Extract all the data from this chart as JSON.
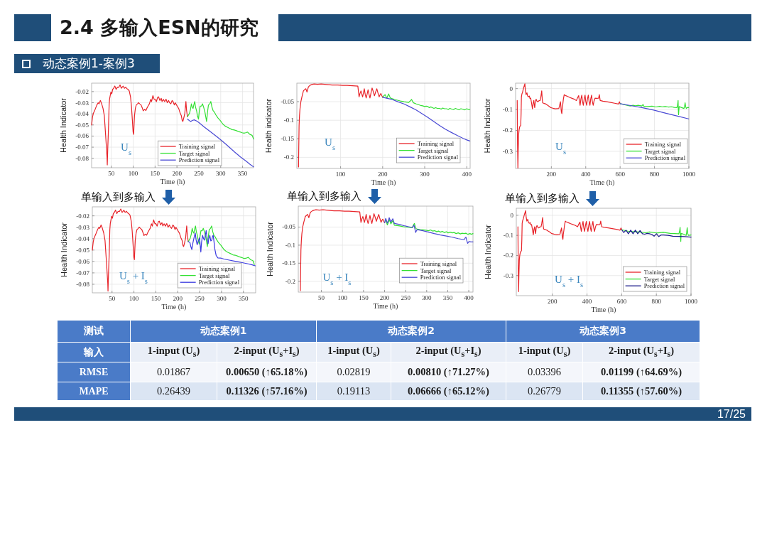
{
  "chart_data": [
    {
      "type": "other",
      "title": "2.4 多输入ESN的研究",
      "subtitle": "动态案例1-案例3"
    },
    {
      "type": "line",
      "xlabel": "Time (h)",
      "ylabel": "Health Indicator",
      "xlim": [
        5,
        375
      ],
      "ylim": [
        -0.0885,
        -0.0124
      ],
      "xticks": [
        50,
        100,
        150,
        200,
        250,
        300,
        350
      ],
      "yticks": [
        -0.08,
        -0.07,
        -0.06,
        -0.05,
        -0.04,
        -0.03,
        -0.02
      ],
      "grid": true,
      "legend": "bottom right",
      "annotations": [
        "U$_{s}$"
      ],
      "series": [
        {
          "name": "Training signal",
          "color": "#e8242a",
          "x": [
            5,
            7,
            9,
            13,
            17,
            20,
            22,
            25,
            28,
            31,
            34,
            36.5,
            38.5,
            40.3,
            40.8,
            42,
            43.5,
            45,
            46,
            49,
            51,
            53,
            55,
            58,
            61,
            64,
            67,
            70,
            73,
            77,
            80,
            83,
            85,
            88,
            91,
            94,
            96,
            98,
            99.8,
            101,
            103,
            105,
            107,
            110,
            112,
            115,
            118,
            121,
            123,
            126,
            129,
            131,
            134,
            137,
            140,
            142,
            145,
            148,
            150,
            153,
            156,
            158,
            161,
            164,
            166,
            169,
            172,
            175,
            178,
            181,
            183,
            186,
            189,
            191,
            194,
            196,
            199,
            202,
            204,
            207,
            210,
            212,
            213.5,
            216,
            218,
            220.5,
            222,
            224
          ],
          "values": [
            -0.05,
            -0.043,
            -0.0395,
            -0.036,
            -0.032,
            -0.03,
            -0.031,
            -0.028,
            -0.031,
            -0.035,
            -0.0416,
            -0.056,
            -0.068,
            -0.0796,
            -0.086,
            -0.07,
            -0.054,
            -0.032,
            -0.0268,
            -0.0204,
            -0.022,
            -0.018,
            -0.0172,
            -0.015,
            -0.018,
            -0.016,
            -0.0162,
            -0.014,
            -0.017,
            -0.0151,
            -0.017,
            -0.016,
            -0.0172,
            -0.018,
            -0.0194,
            -0.025,
            -0.0331,
            -0.045,
            -0.0564,
            -0.0585,
            -0.0416,
            -0.035,
            -0.032,
            -0.031,
            -0.0299,
            -0.031,
            -0.032,
            -0.035,
            -0.0373,
            -0.036,
            -0.037,
            -0.0352,
            -0.033,
            -0.031,
            -0.027,
            -0.029,
            -0.0236,
            -0.027,
            -0.0268,
            -0.029,
            -0.025,
            -0.0247,
            -0.028,
            -0.026,
            -0.0289,
            -0.027,
            -0.029,
            -0.0268,
            -0.03,
            -0.028,
            -0.0299,
            -0.031,
            -0.028,
            -0.0289,
            -0.032,
            -0.03,
            -0.032,
            -0.034,
            -0.0352,
            -0.039,
            -0.0416,
            -0.046,
            -0.0469,
            -0.043,
            -0.0395,
            -0.0289,
            -0.037,
            -0.0426
          ]
        },
        {
          "name": "Target signal",
          "color": "#33e033",
          "x": [
            224,
            228.7,
            231,
            233,
            235,
            236.8,
            238.5,
            240.6,
            242.5,
            244.9,
            247,
            249.2,
            251,
            253,
            256,
            258.4,
            261,
            263.9,
            266,
            267.7,
            270,
            272,
            275,
            277.4,
            280,
            282.8,
            285.5,
            289,
            293.6,
            299,
            304.5,
            310,
            315.3,
            320,
            326.1,
            331,
            337,
            341,
            345,
            349,
            353.2,
            357,
            361.3,
            364,
            366.7,
            370,
            372.1,
            375
          ],
          "values": [
            -0.0426,
            -0.0395,
            -0.036,
            -0.031,
            -0.034,
            -0.0352,
            -0.032,
            -0.0289,
            -0.034,
            -0.0373,
            -0.042,
            -0.0447,
            -0.038,
            -0.0331,
            -0.033,
            -0.031,
            -0.034,
            -0.0384,
            -0.043,
            -0.0469,
            -0.038,
            -0.032,
            -0.031,
            -0.0289,
            -0.034,
            -0.0373,
            -0.0384,
            -0.041,
            -0.0437,
            -0.046,
            -0.049,
            -0.051,
            -0.0521,
            -0.053,
            -0.0542,
            -0.0545,
            -0.0553,
            -0.056,
            -0.0564,
            -0.057,
            -0.0574,
            -0.057,
            -0.0564,
            -0.0575,
            -0.0585,
            -0.059,
            -0.0595,
            -0.0627
          ]
        },
        {
          "name": "Prediction signal",
          "color": "#4a4ad4",
          "x": [
            224,
            228,
            231.4,
            235,
            239.5,
            245,
            250.3,
            263,
            277.4,
            291,
            304.5,
            318,
            331.5,
            345,
            358.6,
            367,
            375
          ],
          "values": [
            -0.0447,
            -0.046,
            -0.0469,
            -0.046,
            -0.0454,
            -0.0465,
            -0.0479,
            -0.052,
            -0.0564,
            -0.0605,
            -0.0648,
            -0.0695,
            -0.0743,
            -0.0787,
            -0.0828,
            -0.0855,
            -0.0877
          ]
        }
      ]
    },
    {
      "type": "line",
      "xlabel": "Time (h)",
      "ylabel": "Health indicator",
      "xlim": [
        -4,
        408
      ],
      "ylim": [
        -0.23,
        0
      ],
      "xticks": [
        100,
        200,
        300,
        400
      ],
      "yticks": [
        -0.2,
        -0.15,
        -0.1,
        -0.05
      ],
      "grid": true,
      "legend": "bottom right",
      "annotations": [
        "U$_{s}$"
      ],
      "series": [
        {
          "name": "Training signal",
          "color": "#e8242a",
          "x": [
            0,
            0.6,
            1.3,
            2.3,
            3.5,
            5.5,
            8,
            10,
            11.6,
            14,
            17.3,
            20.1,
            22.9,
            25,
            28.5,
            33,
            37,
            45,
            53.9,
            62,
            70.7,
            80,
            93,
            105,
            115.8,
            128,
            141,
            143.9,
            146,
            148.4,
            150.5,
            152.3,
            154.5,
            156.3,
            158.5,
            160.8,
            163,
            165.3,
            167.5,
            169.8,
            172.5,
            174.8,
            177.5,
            180.5,
            183,
            186.1,
            189,
            191.7,
            193.5,
            195.7,
            198,
            200.2
          ],
          "values": [
            -0.226,
            -0.17,
            -0.114,
            -0.088,
            -0.069,
            -0.05,
            -0.037,
            -0.028,
            -0.021,
            -0.018,
            -0.015,
            -0.024,
            -0.012,
            -0.008,
            -0.005,
            -0.003,
            -0.002,
            -0.003,
            -0.002,
            -0.003,
            -0.004,
            -0.005,
            -0.005,
            -0.006,
            -0.006,
            -0.007,
            -0.008,
            -0.037,
            -0.028,
            -0.021,
            -0.03,
            -0.037,
            -0.025,
            -0.015,
            -0.03,
            -0.04,
            -0.03,
            -0.018,
            -0.03,
            -0.04,
            -0.025,
            -0.013,
            -0.022,
            -0.034,
            -0.025,
            -0.015,
            -0.027,
            -0.037,
            -0.032,
            -0.028,
            -0.034,
            -0.038
          ]
        },
        {
          "name": "Target signal",
          "color": "#33e033",
          "x": [
            200.2,
            203,
            205.8,
            208,
            210.3,
            212.3,
            214.2,
            216.3,
            218.2,
            223,
            228.3,
            235,
            242,
            250.8,
            256,
            262,
            265.5,
            268.8,
            271,
            273.3,
            280,
            285,
            290.2,
            295,
            300,
            303.5,
            307.1,
            311,
            314.5,
            318.3,
            322,
            326,
            330,
            335.2,
            339,
            343,
            347,
            352.1,
            356,
            360,
            364,
            369,
            373,
            377,
            381,
            385.9,
            390,
            395,
            400,
            404,
            407.3
          ],
          "values": [
            -0.038,
            -0.034,
            -0.031,
            -0.036,
            -0.04,
            -0.034,
            -0.029,
            -0.035,
            -0.04,
            -0.042,
            -0.044,
            -0.046,
            -0.048,
            -0.05,
            -0.051,
            -0.052,
            -0.048,
            -0.044,
            -0.049,
            -0.053,
            -0.056,
            -0.058,
            -0.06,
            -0.061,
            -0.063,
            -0.062,
            -0.063,
            -0.066,
            -0.064,
            -0.066,
            -0.068,
            -0.066,
            -0.068,
            -0.068,
            -0.07,
            -0.067,
            -0.069,
            -0.069,
            -0.071,
            -0.068,
            -0.07,
            -0.071,
            -0.068,
            -0.07,
            -0.072,
            -0.069,
            -0.07,
            -0.072,
            -0.069,
            -0.071,
            -0.071
          ]
        },
        {
          "name": "Prediction signal",
          "color": "#4a4ad4",
          "x": [
            200.2,
            211,
            222.7,
            236,
            250.8,
            265,
            279,
            293,
            307,
            321,
            335,
            349,
            363.4,
            377,
            391.5,
            400,
            407.3
          ],
          "values": [
            -0.038,
            -0.041,
            -0.044,
            -0.05,
            -0.056,
            -0.064,
            -0.072,
            -0.082,
            -0.092,
            -0.103,
            -0.114,
            -0.124,
            -0.133,
            -0.141,
            -0.149,
            -0.153,
            -0.156
          ]
        }
      ]
    },
    {
      "type": "line",
      "xlabel": "Time (h)",
      "ylabel": "Health Indicator",
      "xlim": [
        -8,
        1000
      ],
      "ylim": [
        -0.382,
        0.026
      ],
      "xticks": [
        200,
        400,
        600,
        800,
        1000
      ],
      "yticks": [
        -0.3,
        -0.2,
        -0.1,
        0
      ],
      "grid": true,
      "legend": "bottom right",
      "annotations": [
        "U$_{s}$"
      ],
      "series": [
        {
          "name": "Training signal",
          "color": "#e8242a",
          "x": [
            1.4,
            3,
            5.4,
            7,
            9.5,
            12,
            16,
            21.8,
            24,
            25.8,
            29,
            32.7,
            36,
            39.5,
            43,
            46,
            49,
            53,
            58,
            62,
            66.7,
            72,
            76,
            80,
            85,
            90,
            94,
            98,
            101,
            103.4,
            107,
            111.6,
            116,
            121,
            128,
            134.7,
            139,
            144,
            147,
            149.7,
            155,
            162,
            168.7,
            175,
            182,
            189,
            196,
            205,
            214,
            223,
            233,
            243.5,
            248,
            253,
            256,
            258,
            261,
            263,
            266.7,
            270,
            274.8,
            279,
            284.4,
            295,
            306,
            318,
            331,
            345.6,
            352,
            359,
            363,
            367.3,
            372,
            377,
            381,
            386,
            391,
            396,
            400,
            405.4,
            410,
            415,
            419,
            424.5,
            429,
            434,
            438,
            443.5,
            448,
            454,
            464,
            474.8,
            479,
            484,
            500,
            522.4,
            545,
            568,
            590.5,
            596,
            600
          ],
          "values": [
            -0.057,
            -0.25,
            -0.38,
            -0.3,
            -0.222,
            -0.2,
            -0.182,
            -0.177,
            -0.12,
            -0.04,
            -0.025,
            -0.017,
            -0.005,
            0.006,
            0.015,
            0.023,
            -0.01,
            -0.029,
            -0.02,
            -0.035,
            -0.04,
            -0.036,
            -0.048,
            -0.046,
            -0.07,
            -0.097,
            -0.07,
            -0.057,
            -0.08,
            -0.091,
            -0.06,
            -0.051,
            -0.06,
            -0.063,
            -0.058,
            -0.057,
            -0.04,
            -0.011,
            -0.05,
            -0.068,
            -0.07,
            -0.072,
            -0.074,
            -0.078,
            -0.082,
            -0.086,
            -0.091,
            -0.093,
            -0.095,
            -0.097,
            -0.096,
            -0.095,
            -0.08,
            -0.063,
            -0.09,
            -0.11,
            -0.12,
            -0.095,
            -0.074,
            -0.05,
            -0.029,
            -0.032,
            -0.034,
            -0.038,
            -0.042,
            -0.046,
            -0.05,
            -0.057,
            -0.045,
            -0.034,
            -0.06,
            -0.08,
            -0.05,
            -0.031,
            -0.06,
            -0.08,
            -0.05,
            -0.031,
            -0.06,
            -0.08,
            -0.05,
            -0.031,
            -0.06,
            -0.08,
            -0.05,
            -0.031,
            -0.06,
            -0.08,
            -0.06,
            -0.046,
            -0.047,
            -0.046,
            -0.029,
            -0.057,
            -0.06,
            -0.063,
            -0.066,
            -0.07,
            -0.074,
            -0.063,
            -0.072
          ]
        },
        {
          "name": "Target signal",
          "color": "#33e033",
          "x": [
            600,
            620,
            640,
            658.5,
            675,
            690,
            705,
            726.5,
            733,
            740,
            760,
            785,
            808,
            830,
            845,
            862.6,
            880,
            900,
            915,
            930.6,
            934,
            937.4,
            938.5,
            940,
            942,
            944,
            955,
            971.4,
            975,
            978,
            981,
            985,
            992,
            998.6
          ],
          "values": [
            -0.072,
            -0.076,
            -0.08,
            -0.083,
            -0.08,
            -0.082,
            -0.08,
            -0.083,
            -0.076,
            -0.086,
            -0.086,
            -0.084,
            -0.088,
            -0.085,
            -0.087,
            -0.086,
            -0.088,
            -0.087,
            -0.09,
            -0.091,
            -0.08,
            -0.057,
            -0.1,
            -0.125,
            -0.1,
            -0.086,
            -0.09,
            -0.095,
            -0.085,
            -0.068,
            -0.085,
            -0.095,
            -0.09,
            -0.091
          ]
        },
        {
          "name": "Prediction signal",
          "color": "#4a4ad4",
          "x": [
            600,
            660,
            726.5,
            795,
            862.6,
            930,
            998.6
          ],
          "values": [
            -0.072,
            -0.081,
            -0.091,
            -0.103,
            -0.117,
            -0.131,
            -0.145
          ]
        }
      ]
    },
    {
      "type": "line",
      "xlabel": "Time (h)",
      "ylabel": "Health Indicator",
      "xlim": [
        5,
        378
      ],
      "ylim": [
        -0.0875,
        -0.0121
      ],
      "xticks": [
        50,
        100,
        150,
        200,
        250,
        300,
        350
      ],
      "yticks": [
        -0.08,
        -0.07,
        -0.06,
        -0.05,
        -0.04,
        -0.03,
        -0.02
      ],
      "grid": true,
      "legend": "bottom right",
      "annotations": [
        "U$_{s}$ + I$_{s}$",
        "单输入到多输入"
      ],
      "series": [
        {
          "name": "Training signal",
          "color": "#e8242a",
          "x": [
            5,
            7,
            9,
            13,
            17,
            20,
            22,
            25,
            28,
            31,
            34,
            36.5,
            38.5,
            40.3,
            40.8,
            42,
            43.5,
            45,
            46,
            49,
            51,
            53,
            55,
            58,
            61,
            64,
            67,
            70,
            73,
            77,
            80,
            83,
            85,
            88,
            91,
            94,
            96,
            98,
            99.8,
            101,
            103,
            105,
            107,
            110,
            112,
            115,
            118,
            121,
            123,
            126,
            129,
            131,
            134,
            137,
            140,
            142,
            145,
            148,
            150,
            153,
            156,
            158,
            161,
            164,
            166,
            169,
            172,
            175,
            178,
            181,
            183,
            186,
            189,
            191,
            194,
            196,
            199,
            202,
            204,
            207,
            210,
            212,
            213.5,
            216,
            218,
            220.5,
            222,
            224
          ],
          "values": [
            -0.05,
            -0.043,
            -0.0395,
            -0.036,
            -0.032,
            -0.03,
            -0.031,
            -0.028,
            -0.031,
            -0.035,
            -0.0416,
            -0.056,
            -0.068,
            -0.0796,
            -0.086,
            -0.07,
            -0.054,
            -0.032,
            -0.0268,
            -0.0204,
            -0.022,
            -0.018,
            -0.0172,
            -0.015,
            -0.018,
            -0.016,
            -0.0162,
            -0.014,
            -0.017,
            -0.0151,
            -0.017,
            -0.016,
            -0.0172,
            -0.018,
            -0.0194,
            -0.025,
            -0.0331,
            -0.045,
            -0.0564,
            -0.0585,
            -0.0416,
            -0.035,
            -0.032,
            -0.031,
            -0.0299,
            -0.031,
            -0.032,
            -0.035,
            -0.0373,
            -0.036,
            -0.037,
            -0.0352,
            -0.033,
            -0.031,
            -0.027,
            -0.029,
            -0.0236,
            -0.027,
            -0.0268,
            -0.029,
            -0.025,
            -0.0247,
            -0.028,
            -0.026,
            -0.0289,
            -0.027,
            -0.029,
            -0.0268,
            -0.03,
            -0.028,
            -0.0299,
            -0.031,
            -0.028,
            -0.0289,
            -0.032,
            -0.03,
            -0.032,
            -0.034,
            -0.0352,
            -0.039,
            -0.0416,
            -0.046,
            -0.0469,
            -0.043,
            -0.0395,
            -0.0289,
            -0.037,
            -0.0426
          ]
        },
        {
          "name": "Target signal",
          "color": "#33e033",
          "x": [
            224,
            228.7,
            231,
            233,
            235,
            236.8,
            238.5,
            240.6,
            242.5,
            244.9,
            247,
            249.2,
            251,
            253,
            256,
            258.4,
            261,
            263.9,
            266,
            267.7,
            270,
            272,
            275,
            277.4,
            280,
            282.8,
            285.5,
            289,
            293.6,
            299,
            304.5,
            310,
            315.3,
            320,
            326.1,
            331,
            337,
            341,
            345,
            349,
            353.2,
            357,
            361.3,
            364,
            366.7,
            370,
            372.1,
            375
          ],
          "values": [
            -0.0426,
            -0.0395,
            -0.036,
            -0.031,
            -0.034,
            -0.0352,
            -0.032,
            -0.0289,
            -0.034,
            -0.0373,
            -0.042,
            -0.0447,
            -0.038,
            -0.0331,
            -0.033,
            -0.031,
            -0.034,
            -0.0384,
            -0.043,
            -0.0469,
            -0.038,
            -0.032,
            -0.031,
            -0.0289,
            -0.034,
            -0.0373,
            -0.0384,
            -0.041,
            -0.0437,
            -0.046,
            -0.049,
            -0.051,
            -0.0521,
            -0.053,
            -0.0542,
            -0.0545,
            -0.0553,
            -0.056,
            -0.0564,
            -0.057,
            -0.0574,
            -0.057,
            -0.0564,
            -0.0575,
            -0.0585,
            -0.059,
            -0.0595,
            -0.0627
          ]
        },
        {
          "name": "Prediction signal",
          "color": "#3a3ae0",
          "x": [
            224,
            227.8,
            230,
            232.2,
            234,
            236,
            238,
            240,
            242,
            244.4,
            247,
            250,
            252.8,
            254.5,
            256.7,
            259,
            261,
            263,
            265,
            267,
            269.4,
            271,
            273.3,
            275.5,
            277.8,
            279.5,
            281,
            283,
            284.4,
            287.8,
            291.7,
            298,
            305.6,
            320,
            333.3,
            347,
            361,
            370,
            377
          ],
          "values": [
            -0.0426,
            -0.0433,
            -0.047,
            -0.0496,
            -0.045,
            -0.0413,
            -0.038,
            -0.035,
            -0.041,
            -0.0454,
            -0.042,
            -0.0392,
            -0.0517,
            -0.043,
            -0.0371,
            -0.04,
            -0.0413,
            -0.037,
            -0.0329,
            -0.04,
            -0.0444,
            -0.04,
            -0.0371,
            -0.042,
            -0.0413,
            -0.038,
            -0.0371,
            -0.043,
            -0.0485,
            -0.0548,
            -0.0569,
            -0.057,
            -0.0579,
            -0.059,
            -0.06,
            -0.061,
            -0.0621,
            -0.063,
            -0.0638
          ]
        }
      ]
    },
    {
      "type": "line",
      "xlabel": "Time (h)",
      "ylabel": "Health Indicator",
      "xlim": [
        -5,
        410
      ],
      "ylim": [
        -0.23,
        0.008
      ],
      "xticks": [
        50,
        100,
        150,
        200,
        250,
        300,
        350,
        400
      ],
      "yticks": [
        -0.2,
        -0.15,
        -0.1,
        -0.05
      ],
      "grid": true,
      "legend": "bottom right",
      "annotations": [
        "U$_{s}$ + I$_{s}$",
        "单输入到多输入"
      ],
      "series": [
        {
          "name": "Training signal",
          "color": "#e8242a",
          "x": [
            0,
            0.6,
            1.3,
            2.3,
            3.5,
            5.5,
            8,
            10,
            11.6,
            14,
            17.3,
            20.1,
            22.9,
            25,
            28.5,
            33,
            37,
            45,
            53.9,
            62,
            70.7,
            80,
            93,
            105,
            115.8,
            128,
            141,
            143.9,
            146,
            148.4,
            150.5,
            152.3,
            154.5,
            156.3,
            158.5,
            160.8,
            163,
            165.3,
            167.5,
            169.8,
            172.5,
            174.8,
            177.5,
            180.5,
            183,
            186.1,
            189,
            191.7,
            193.5,
            195.7,
            198,
            200.2
          ],
          "values": [
            -0.226,
            -0.17,
            -0.114,
            -0.088,
            -0.069,
            -0.05,
            -0.037,
            -0.028,
            -0.021,
            -0.018,
            -0.015,
            -0.024,
            -0.012,
            -0.008,
            -0.005,
            -0.003,
            -0.002,
            -0.003,
            -0.002,
            -0.003,
            -0.004,
            -0.005,
            -0.005,
            -0.006,
            -0.006,
            -0.007,
            -0.008,
            -0.037,
            -0.028,
            -0.021,
            -0.03,
            -0.037,
            -0.025,
            -0.015,
            -0.03,
            -0.04,
            -0.03,
            -0.018,
            -0.03,
            -0.04,
            -0.025,
            -0.013,
            -0.022,
            -0.034,
            -0.025,
            -0.015,
            -0.027,
            -0.037,
            -0.032,
            -0.028,
            -0.034,
            -0.038
          ]
        },
        {
          "name": "Target signal",
          "color": "#33e033",
          "x": [
            202,
            204.6,
            206.6,
            209,
            211,
            213,
            215,
            217.5,
            219.5,
            221.5,
            223.4,
            236,
            248.6,
            258,
            266,
            268.5,
            271,
            273,
            275.5,
            285,
            295,
            304.7,
            309,
            314,
            319,
            324,
            328,
            332.8,
            337,
            342,
            347,
            351,
            356,
            360.8,
            365,
            370,
            375,
            380,
            384,
            388.8,
            393,
            398,
            403,
            406,
            410
          ],
          "values": [
            -0.031,
            -0.037,
            -0.044,
            -0.037,
            -0.03,
            -0.035,
            -0.041,
            -0.036,
            -0.032,
            -0.039,
            -0.045,
            -0.047,
            -0.05,
            -0.051,
            -0.052,
            -0.044,
            -0.04,
            -0.05,
            -0.055,
            -0.057,
            -0.058,
            -0.06,
            -0.058,
            -0.061,
            -0.06,
            -0.063,
            -0.061,
            -0.064,
            -0.062,
            -0.065,
            -0.063,
            -0.066,
            -0.064,
            -0.066,
            -0.065,
            -0.068,
            -0.066,
            -0.069,
            -0.067,
            -0.068,
            -0.067,
            -0.07,
            -0.068,
            -0.07,
            -0.068
          ]
        },
        {
          "name": "Prediction signal",
          "color": "#4a4ad4",
          "x": [
            200.2,
            202.6,
            204.6,
            206.6,
            209,
            211,
            213,
            215,
            217.5,
            219.5,
            221.5,
            223.4,
            236,
            248.6,
            257,
            265.4,
            268,
            270,
            272,
            273.9,
            275.8,
            277.8,
            291,
            304.7,
            318,
            332.8,
            347,
            360.8,
            375,
            388.8,
            391,
            393.3,
            395.5,
            397.3,
            399,
            401.2,
            405,
            410
          ],
          "values": [
            -0.038,
            -0.026,
            -0.032,
            -0.039,
            -0.032,
            -0.024,
            -0.03,
            -0.036,
            -0.031,
            -0.027,
            -0.034,
            -0.04,
            -0.043,
            -0.047,
            -0.049,
            -0.051,
            -0.048,
            -0.045,
            -0.055,
            -0.065,
            -0.06,
            -0.057,
            -0.06,
            -0.064,
            -0.068,
            -0.072,
            -0.075,
            -0.078,
            -0.082,
            -0.085,
            -0.081,
            -0.078,
            -0.088,
            -0.095,
            -0.092,
            -0.09,
            -0.091,
            -0.091
          ]
        }
      ]
    },
    {
      "type": "line",
      "xlabel": "Time (h)",
      "ylabel": "Health Indicator",
      "xlim": [
        -8,
        1000
      ],
      "ylim": [
        -0.4,
        0.035
      ],
      "xticks": [
        200,
        400,
        600,
        800,
        1000
      ],
      "yticks": [
        -0.3,
        -0.2,
        -0.1,
        0
      ],
      "grid": true,
      "legend": "bottom right",
      "annotations": [
        "U$_{s}$ + I$_{s}$",
        "单输入到多输入"
      ],
      "series": [
        {
          "name": "Training signal",
          "color": "#e8242a",
          "x": [
            1.4,
            3,
            5.4,
            7,
            9.5,
            12,
            16,
            21.8,
            24,
            25.8,
            29,
            32.7,
            36,
            39.5,
            43,
            46,
            49,
            53,
            58,
            62,
            66.7,
            72,
            76,
            80,
            85,
            90,
            94,
            98,
            101,
            103.4,
            107,
            111.6,
            116,
            121,
            128,
            134.7,
            139,
            144,
            147,
            149.7,
            155,
            162,
            168.7,
            175,
            182,
            189,
            196,
            205,
            214,
            223,
            233,
            243.5,
            248,
            253,
            256,
            258,
            261,
            263,
            266.7,
            270,
            274.8,
            279,
            284.4,
            295,
            306,
            318,
            331,
            345.6,
            352,
            359,
            363,
            367.3,
            372,
            377,
            381,
            386,
            391,
            396,
            400,
            405.4,
            410,
            415,
            419,
            424.5,
            429,
            434,
            438,
            443.5,
            448,
            454,
            464,
            474.8,
            479,
            484,
            500,
            522.4,
            545,
            568,
            590.5,
            596,
            600
          ],
          "values": [
            -0.057,
            -0.25,
            -0.38,
            -0.3,
            -0.222,
            -0.2,
            -0.182,
            -0.177,
            -0.12,
            -0.04,
            -0.025,
            -0.017,
            -0.005,
            0.006,
            0.015,
            0.023,
            -0.01,
            -0.029,
            -0.02,
            -0.035,
            -0.04,
            -0.036,
            -0.048,
            -0.046,
            -0.07,
            -0.097,
            -0.07,
            -0.057,
            -0.08,
            -0.091,
            -0.06,
            -0.051,
            -0.06,
            -0.063,
            -0.058,
            -0.057,
            -0.04,
            -0.011,
            -0.05,
            -0.068,
            -0.07,
            -0.072,
            -0.074,
            -0.078,
            -0.082,
            -0.086,
            -0.091,
            -0.093,
            -0.095,
            -0.097,
            -0.096,
            -0.095,
            -0.08,
            -0.063,
            -0.09,
            -0.11,
            -0.12,
            -0.095,
            -0.074,
            -0.05,
            -0.029,
            -0.032,
            -0.034,
            -0.038,
            -0.042,
            -0.046,
            -0.05,
            -0.057,
            -0.045,
            -0.034,
            -0.06,
            -0.08,
            -0.05,
            -0.031,
            -0.06,
            -0.08,
            -0.05,
            -0.031,
            -0.06,
            -0.08,
            -0.05,
            -0.031,
            -0.06,
            -0.08,
            -0.05,
            -0.031,
            -0.06,
            -0.08,
            -0.06,
            -0.046,
            -0.047,
            -0.046,
            -0.029,
            -0.057,
            -0.06,
            -0.063,
            -0.066,
            -0.07,
            -0.074,
            -0.063,
            -0.072
          ]
        },
        {
          "name": "Target signal",
          "color": "#33e033",
          "x": [
            600,
            640,
            700,
            740,
            760,
            800,
            840,
            880,
            930,
            934,
            937,
            939,
            941,
            943,
            960,
            972,
            975,
            978,
            981,
            985,
            1000
          ],
          "values": [
            -0.072,
            -0.08,
            -0.083,
            -0.087,
            -0.083,
            -0.088,
            -0.085,
            -0.09,
            -0.092,
            -0.08,
            -0.06,
            -0.1,
            -0.13,
            -0.09,
            -0.095,
            -0.1,
            -0.085,
            -0.062,
            -0.09,
            -0.1,
            -0.098
          ]
        },
        {
          "name": "Prediction signal",
          "color": "#1a1a8a",
          "x": [
            600,
            612,
            625,
            638.6,
            652,
            665.6,
            679,
            692.6,
            706,
            719.6,
            733,
            747,
            760,
            773,
            787,
            800.5,
            814,
            828,
            841,
            868,
            895,
            930,
            962.5,
            1000
          ],
          "values": [
            -0.072,
            -0.086,
            -0.074,
            -0.092,
            -0.074,
            -0.092,
            -0.074,
            -0.092,
            -0.076,
            -0.092,
            -0.094,
            -0.09,
            -0.092,
            -0.095,
            -0.104,
            -0.092,
            -0.106,
            -0.098,
            -0.098,
            -0.1,
            -0.104,
            -0.105,
            -0.106,
            -0.109
          ]
        }
      ]
    },
    {
      "type": "other",
      "y_categories": [
        "测试",
        "输入",
        "RMSE",
        "MAPE"
      ],
      "categories": [
        "动态案例1",
        "动态案例2",
        "动态案例3"
      ],
      "cell_labels": [
        [
          "1-input (U$_{s}$)",
          "2-input (U$_{s}$+I$_{s}$)",
          "1-input (U$_{s}$)",
          "2-input (U$_{s}$+I$_{s}$)",
          "1-input (U$_{s}$)",
          "2-input (U$_{s}$+I$_{s}$)"
        ],
        [
          "0.01867",
          "0.00650 (↑65.18%)",
          "0.02819",
          "0.00810 (↑71.27%)",
          "0.03396",
          "0.01199 (↑64.69%)"
        ],
        [
          "0.26439",
          "0.11326 (↑57.16%)",
          "0.19113",
          "0.06666 (↑65.12%)",
          "0.26779",
          "0.11355 (↑57.60%)"
        ]
      ],
      "annotations": [
        "17/25"
      ]
    }
  ]
}
